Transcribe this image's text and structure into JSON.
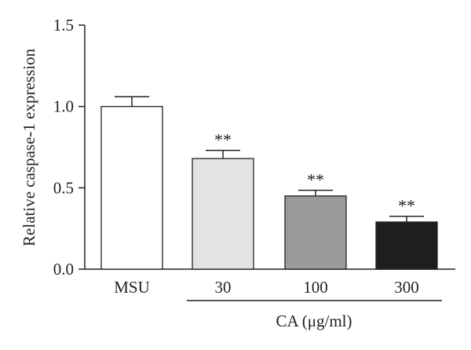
{
  "chart_data": {
    "type": "bar",
    "categories": [
      "MSU",
      "30",
      "100",
      "300"
    ],
    "values": [
      1.0,
      0.68,
      0.45,
      0.29
    ],
    "errors": [
      0.06,
      0.05,
      0.035,
      0.035
    ],
    "significance": [
      "",
      "**",
      "**",
      "**"
    ],
    "bar_colors": [
      "#ffffff",
      "#e3e3e3",
      "#9a9a9a",
      "#1e1e1e"
    ],
    "ylabel": "Relative caspase-1 expression",
    "xlabel": "",
    "group_label": "CA (μg/ml)",
    "group_categories": [
      "30",
      "100",
      "300"
    ],
    "ylim": [
      0,
      1.5
    ],
    "yticks": [
      "0.0",
      "0.5",
      "1.0",
      "1.5"
    ],
    "grid": false
  }
}
